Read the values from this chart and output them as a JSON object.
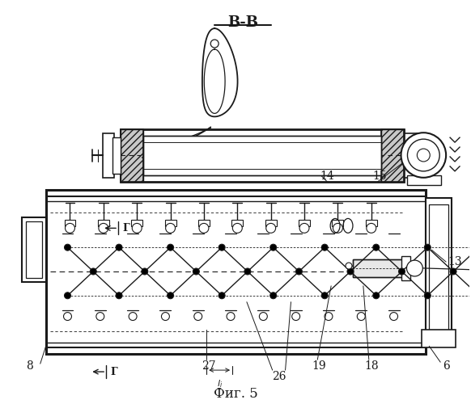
{
  "title": "В-В",
  "fig_label": "Фиг. 5",
  "bg_color": "#ffffff",
  "line_color": "#1a1a1a",
  "gray_light": "#d0d0d0",
  "gray_mid": "#b0b0b0",
  "gray_hatch": "#888888"
}
